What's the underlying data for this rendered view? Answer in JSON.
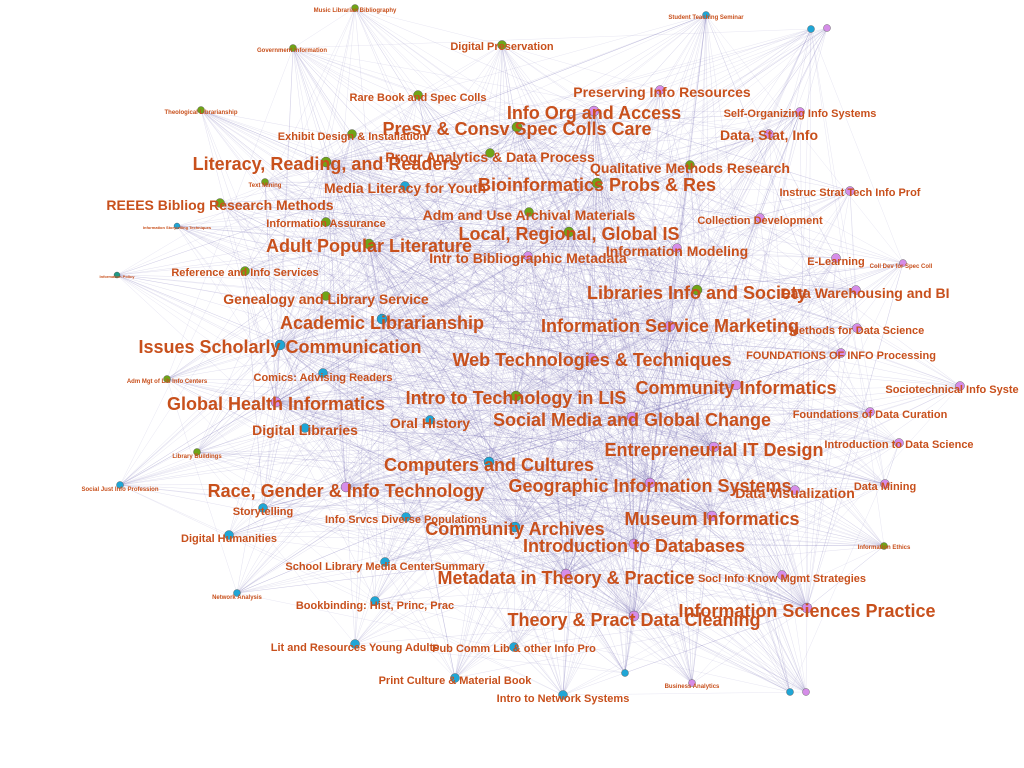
{
  "colors": {
    "label": "#c8501c",
    "edge": "#7b74b6",
    "green": "#6fa418",
    "cyan": "#1fa6d6",
    "pink": "#d58de8",
    "teal": "#1d9a86"
  },
  "nodes": [
    {
      "id": 0,
      "label": "Music Librarian Bibliography",
      "color": "green",
      "size": 1
    },
    {
      "id": 1,
      "label": "Student Teaching Seminar",
      "color": "cyan",
      "size": 1
    },
    {
      "id": 2,
      "label": "",
      "color": "cyan",
      "size": 1
    },
    {
      "id": 3,
      "label": "Government Information",
      "color": "green",
      "size": 1
    },
    {
      "id": 4,
      "label": "Digital Preservation",
      "color": "green",
      "size": 2
    },
    {
      "id": 5,
      "label": "Preserving Info Resources",
      "color": "pink",
      "size": 3
    },
    {
      "id": 6,
      "label": "Rare Book and Spec Colls",
      "color": "green",
      "size": 2
    },
    {
      "id": 7,
      "label": "Theological Librarianship",
      "color": "green",
      "size": 1
    },
    {
      "id": 8,
      "label": "Info Org and Access",
      "color": "pink",
      "size": 4
    },
    {
      "id": 9,
      "label": "Self-Organizing Info Systems",
      "color": "pink",
      "size": 2
    },
    {
      "id": 10,
      "label": "Presv & Consv Spec Colls Care",
      "color": "green",
      "size": 4
    },
    {
      "id": 11,
      "label": "Exhibit Design & Installation",
      "color": "green",
      "size": 2
    },
    {
      "id": 12,
      "label": "Data, Stat, Info",
      "color": "pink",
      "size": 3
    },
    {
      "id": 13,
      "label": "Progr Analytics & Data Process",
      "color": "green",
      "size": 3
    },
    {
      "id": 14,
      "label": "Literacy, Reading, and Readers",
      "color": "green",
      "size": 4
    },
    {
      "id": 15,
      "label": "Qualitative Methods Research",
      "color": "green",
      "size": 3
    },
    {
      "id": 16,
      "label": "Bioinformatics Probs & Res",
      "color": "green",
      "size": 4
    },
    {
      "id": 17,
      "label": "Text Mining",
      "color": "green",
      "size": 1
    },
    {
      "id": 18,
      "label": "Media Literacy for Youth",
      "color": "cyan",
      "size": 3
    },
    {
      "id": 19,
      "label": "Instruc Strat Tech Info Prof",
      "color": "pink",
      "size": 2
    },
    {
      "id": 20,
      "label": "REEES Bibliog Research Methods",
      "color": "green",
      "size": 3
    },
    {
      "id": 21,
      "label": "Adm and Use Archival Materials",
      "color": "green",
      "size": 3
    },
    {
      "id": 22,
      "label": "Collection Development",
      "color": "pink",
      "size": 2
    },
    {
      "id": 23,
      "label": "Information Assurance",
      "color": "green",
      "size": 2
    },
    {
      "id": 24,
      "label": "Local, Regional, Global IS",
      "color": "green",
      "size": 4
    },
    {
      "id": 25,
      "label": "Intr to Bibliographic Metadata",
      "color": "pink",
      "size": 3
    },
    {
      "id": 26,
      "label": "Information Modeling",
      "color": "pink",
      "size": 3
    },
    {
      "id": 27,
      "label": "Adult Popular Literature",
      "color": "green",
      "size": 4
    },
    {
      "id": 28,
      "label": "Reference and Info Services",
      "color": "green",
      "size": 2
    },
    {
      "id": 29,
      "label": "E-Learning",
      "color": "pink",
      "size": 2
    },
    {
      "id": 30,
      "label": "Coll Dev for Spec Coll",
      "color": "pink",
      "size": 1
    },
    {
      "id": 31,
      "label": "Libraries Info and Society",
      "color": "green",
      "size": 4
    },
    {
      "id": 32,
      "label": "Data Warehousing and BI",
      "color": "pink",
      "size": 3
    },
    {
      "id": 33,
      "label": "Genealogy and Library Service",
      "color": "green",
      "size": 3
    },
    {
      "id": 34,
      "label": "Academic Librarianship",
      "color": "cyan",
      "size": 4
    },
    {
      "id": 35,
      "label": "Information Service Marketing",
      "color": "pink",
      "size": 4
    },
    {
      "id": 36,
      "label": "Methods for Data Science",
      "color": "pink",
      "size": 2
    },
    {
      "id": 37,
      "label": "Issues Scholarly Communication",
      "color": "cyan",
      "size": 4
    },
    {
      "id": 38,
      "label": "FOUNDATIONS OF INFO Processing",
      "color": "pink",
      "size": 2
    },
    {
      "id": 39,
      "label": "Web Technologies & Techniques",
      "color": "pink",
      "size": 4
    },
    {
      "id": 40,
      "label": "Comics: Advising Readers",
      "color": "cyan",
      "size": 2
    },
    {
      "id": 41,
      "label": "Adm Mgt of Lib Info Centers",
      "color": "green",
      "size": 1
    },
    {
      "id": 42,
      "label": "Community Informatics",
      "color": "pink",
      "size": 4
    },
    {
      "id": 43,
      "label": "Sociotechnical Info Syste",
      "color": "pink",
      "size": 2
    },
    {
      "id": 44,
      "label": "Global Health Informatics",
      "color": "pink",
      "size": 4
    },
    {
      "id": 45,
      "label": "Intro to Technology in LIS",
      "color": "green",
      "size": 4
    },
    {
      "id": 46,
      "label": "Foundations of Data Curation",
      "color": "pink",
      "size": 2
    },
    {
      "id": 47,
      "label": "Oral History",
      "color": "cyan",
      "size": 3
    },
    {
      "id": 48,
      "label": "Social Media and Global Change",
      "color": "pink",
      "size": 4
    },
    {
      "id": 49,
      "label": "Digital Libraries",
      "color": "cyan",
      "size": 3
    },
    {
      "id": 50,
      "label": "Introduction to Data Science",
      "color": "pink",
      "size": 2
    },
    {
      "id": 51,
      "label": "Library Buildings",
      "color": "green",
      "size": 1
    },
    {
      "id": 52,
      "label": "Entrepreneurial IT Design",
      "color": "pink",
      "size": 4
    },
    {
      "id": 53,
      "label": "Computers and Cultures",
      "color": "cyan",
      "size": 4
    },
    {
      "id": 54,
      "label": "Social Just Info Profession",
      "color": "cyan",
      "size": 1
    },
    {
      "id": 55,
      "label": "Race, Gender & Info Technology",
      "color": "pink",
      "size": 4
    },
    {
      "id": 56,
      "label": "Geographic Information Systems",
      "color": "pink",
      "size": 4
    },
    {
      "id": 57,
      "label": "Data Visualization",
      "color": "pink",
      "size": 3
    },
    {
      "id": 58,
      "label": "Data Mining",
      "color": "pink",
      "size": 2
    },
    {
      "id": 59,
      "label": "Storytelling",
      "color": "cyan",
      "size": 2
    },
    {
      "id": 60,
      "label": "Info Srvcs Diverse Populations",
      "color": "cyan",
      "size": 2
    },
    {
      "id": 61,
      "label": "Museum Informatics",
      "color": "pink",
      "size": 4
    },
    {
      "id": 62,
      "label": "Community Archives",
      "color": "cyan",
      "size": 4
    },
    {
      "id": 63,
      "label": "Digital Humanities",
      "color": "cyan",
      "size": 2
    },
    {
      "id": 64,
      "label": "Introduction to Databases",
      "color": "pink",
      "size": 4
    },
    {
      "id": 65,
      "label": "Information Ethics",
      "color": "green",
      "size": 1
    },
    {
      "id": 66,
      "label": "School Library Media CenterSummary",
      "color": "cyan",
      "size": 2
    },
    {
      "id": 67,
      "label": "Metadata in Theory & Practice",
      "color": "pink",
      "size": 4
    },
    {
      "id": 68,
      "label": "Socl Info Know Mgmt Strategies",
      "color": "pink",
      "size": 2
    },
    {
      "id": 69,
      "label": "Network Analysis",
      "color": "cyan",
      "size": 1
    },
    {
      "id": 70,
      "label": "Bookbinding: Hist, Princ, Prac",
      "color": "cyan",
      "size": 2
    },
    {
      "id": 71,
      "label": "Information Sciences Practice",
      "color": "pink",
      "size": 4
    },
    {
      "id": 72,
      "label": "Theory & Pract Data Cleaning",
      "color": "pink",
      "size": 4
    },
    {
      "id": 73,
      "label": "Lit and Resources Young Adults",
      "color": "cyan",
      "size": 2
    },
    {
      "id": 74,
      "label": "Pub Comm Lib & other Info Pro",
      "color": "cyan",
      "size": 2
    },
    {
      "id": 75,
      "label": "",
      "color": "cyan",
      "size": 1
    },
    {
      "id": 76,
      "label": "Print Culture & Material Book",
      "color": "cyan",
      "size": 2
    },
    {
      "id": 77,
      "label": "Business Analytics",
      "color": "pink",
      "size": 1
    },
    {
      "id": 78,
      "label": "Intro to Network Systems",
      "color": "cyan",
      "size": 2
    },
    {
      "id": 79,
      "label": "",
      "color": "pink",
      "size": 1
    },
    {
      "id": 80,
      "label": "Information Storytelling Techniques",
      "color": "cyan",
      "size": 0
    },
    {
      "id": 81,
      "label": "Information Policy",
      "color": "teal",
      "size": 0
    },
    {
      "id": 82,
      "label": "",
      "color": "pink",
      "size": 1
    },
    {
      "id": 83,
      "label": "",
      "color": "cyan",
      "size": 1
    }
  ]
}
